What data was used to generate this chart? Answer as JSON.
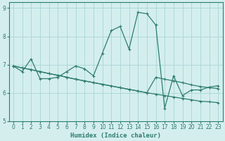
{
  "xlabel": "Humidex (Indice chaleur)",
  "bg_color": "#d4eeee",
  "line_color": "#2e7d6e",
  "grid_color": "#aed8d8",
  "xlim": [
    -0.5,
    23.5
  ],
  "ylim": [
    5,
    9.2
  ],
  "yticks": [
    5,
    6,
    7,
    8,
    9
  ],
  "xticks": [
    0,
    1,
    2,
    3,
    4,
    5,
    6,
    7,
    8,
    9,
    10,
    11,
    12,
    13,
    14,
    15,
    16,
    17,
    18,
    19,
    20,
    21,
    22,
    23
  ],
  "line1_x": [
    0,
    1,
    2,
    3,
    4,
    5,
    6,
    7,
    8,
    9,
    10,
    11,
    12,
    13,
    14,
    15,
    16,
    17,
    18,
    19,
    20,
    21,
    22,
    23
  ],
  "line1_y": [
    6.95,
    6.88,
    6.82,
    6.75,
    6.68,
    6.62,
    6.55,
    6.48,
    6.42,
    6.36,
    6.3,
    6.24,
    6.18,
    6.12,
    6.06,
    6.0,
    6.55,
    6.48,
    6.42,
    6.36,
    6.28,
    6.22,
    6.18,
    6.15
  ],
  "line2_x": [
    0,
    1,
    2,
    3,
    4,
    5,
    6,
    7,
    8,
    9,
    10,
    11,
    12,
    13,
    14,
    15,
    16,
    17,
    18,
    19,
    20,
    21,
    22,
    23
  ],
  "line2_y": [
    6.95,
    6.75,
    7.2,
    6.5,
    6.5,
    6.55,
    6.75,
    6.95,
    6.85,
    6.6,
    7.4,
    8.2,
    8.35,
    7.55,
    8.85,
    8.8,
    8.4,
    5.45,
    6.6,
    5.9,
    6.1,
    6.1,
    6.2,
    6.25
  ],
  "line3_x": [
    0,
    1,
    2,
    3,
    4,
    5,
    6,
    7,
    8,
    9,
    10,
    11,
    12,
    13,
    14,
    15,
    16,
    17,
    18,
    19,
    20,
    21,
    22,
    23
  ],
  "line3_y": [
    6.95,
    6.88,
    6.82,
    6.75,
    6.68,
    6.62,
    6.55,
    6.48,
    6.42,
    6.36,
    6.3,
    6.24,
    6.18,
    6.12,
    6.06,
    6.0,
    5.95,
    5.9,
    5.85,
    5.8,
    5.75,
    5.7,
    5.68,
    5.65
  ]
}
